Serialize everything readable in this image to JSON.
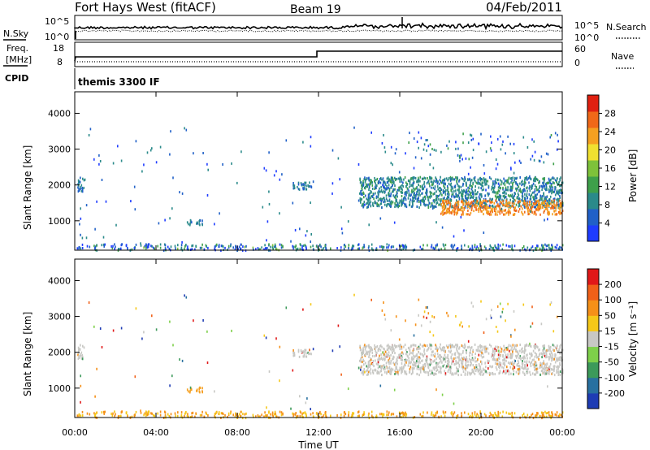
{
  "header": {
    "title": "Fort Hays West (fitACF)",
    "beam": "Beam 19",
    "date": "04/Feb/2011"
  },
  "status_panels": {
    "nsky_label": "N.Sky",
    "nsearch_label": "N.Search",
    "freq_label_line1": "Freq.",
    "freq_label_line2": "[MHz]",
    "nave_label": "Nave",
    "cpid_label": "CPID",
    "cpid_text": "themis 3300 IF",
    "noise_ticks_left": [
      "10^5",
      "10^0"
    ],
    "noise_ticks_right": [
      "10^5",
      "10^0"
    ],
    "freq_ticks": [
      "18",
      "8"
    ],
    "nave_ticks": [
      "60",
      "0"
    ]
  },
  "chart_data": [
    {
      "type": "scatter",
      "panel": "power",
      "xlabel": "",
      "ylabel": "Slant Range [km]",
      "xlim_hours": [
        0,
        24
      ],
      "ylim": [
        180,
        4600
      ],
      "y_ticks": [
        "4000",
        "3000",
        "2000",
        "1000"
      ],
      "y_tick_values": [
        4000,
        3000,
        2000,
        1000
      ],
      "colorbar": {
        "label": "Power [dB]",
        "ticks": [
          "28",
          "24",
          "20",
          "16",
          "12",
          "8",
          "4"
        ],
        "tick_values": [
          28,
          24,
          20,
          16,
          12,
          8,
          4
        ],
        "range": [
          0,
          30
        ],
        "colors": [
          "#1e3cff",
          "#2060c8",
          "#2a8a8a",
          "#3ea04a",
          "#7ec23a",
          "#f0e030",
          "#f5a020",
          "#f06818",
          "#e02010"
        ]
      },
      "regions": [
        {
          "t0": 0.1,
          "t1": 0.45,
          "r0": 1850,
          "r1": 2250,
          "level": 4
        },
        {
          "t0": 5.5,
          "t1": 6.3,
          "r0": 900,
          "r1": 1050,
          "level": 4
        },
        {
          "t0": 10.7,
          "t1": 11.7,
          "r0": 1900,
          "r1": 2100,
          "level": 4
        },
        {
          "t0": 14.0,
          "t1": 24.0,
          "r0": 1400,
          "r1": 2250,
          "level": 5
        },
        {
          "t0": 18.0,
          "t1": 24.0,
          "r0": 1200,
          "r1": 1600,
          "level": 20
        }
      ]
    },
    {
      "type": "scatter",
      "panel": "velocity",
      "xlabel": "Time UT",
      "ylabel": "Slant Range [km]",
      "xlim_hours": [
        0,
        24
      ],
      "x_ticks": [
        "00:00",
        "04:00",
        "08:00",
        "12:00",
        "16:00",
        "20:00",
        "00:00"
      ],
      "x_tick_hours": [
        0,
        4,
        8,
        12,
        16,
        20,
        24
      ],
      "ylim": [
        180,
        4600
      ],
      "y_ticks": [
        "4000",
        "3000",
        "2000",
        "1000"
      ],
      "y_tick_values": [
        4000,
        3000,
        2000,
        1000
      ],
      "colorbar": {
        "label": "Velocity [m s⁻¹]",
        "ticks": [
          "200",
          "100",
          "50",
          "15",
          "-15",
          "-50",
          "-100",
          "-200"
        ],
        "colors": [
          "#1e3cb4",
          "#2870a0",
          "#3c9a5a",
          "#7ed04a",
          "#c8c8c4",
          "#f5c818",
          "#f59018",
          "#f06018",
          "#e01818"
        ]
      },
      "regions": [
        {
          "t0": 0.1,
          "t1": 0.45,
          "r0": 1850,
          "r1": 2250,
          "color": "#c8c8c4"
        },
        {
          "t0": 5.5,
          "t1": 6.3,
          "r0": 900,
          "r1": 1050,
          "color": "#f5a020"
        },
        {
          "t0": 10.7,
          "t1": 11.7,
          "r0": 1900,
          "r1": 2100,
          "color": "#c8c8c4"
        },
        {
          "t0": 14.0,
          "t1": 24.0,
          "r0": 1300,
          "r1": 2250,
          "color": "#c8c8c4"
        }
      ]
    }
  ]
}
